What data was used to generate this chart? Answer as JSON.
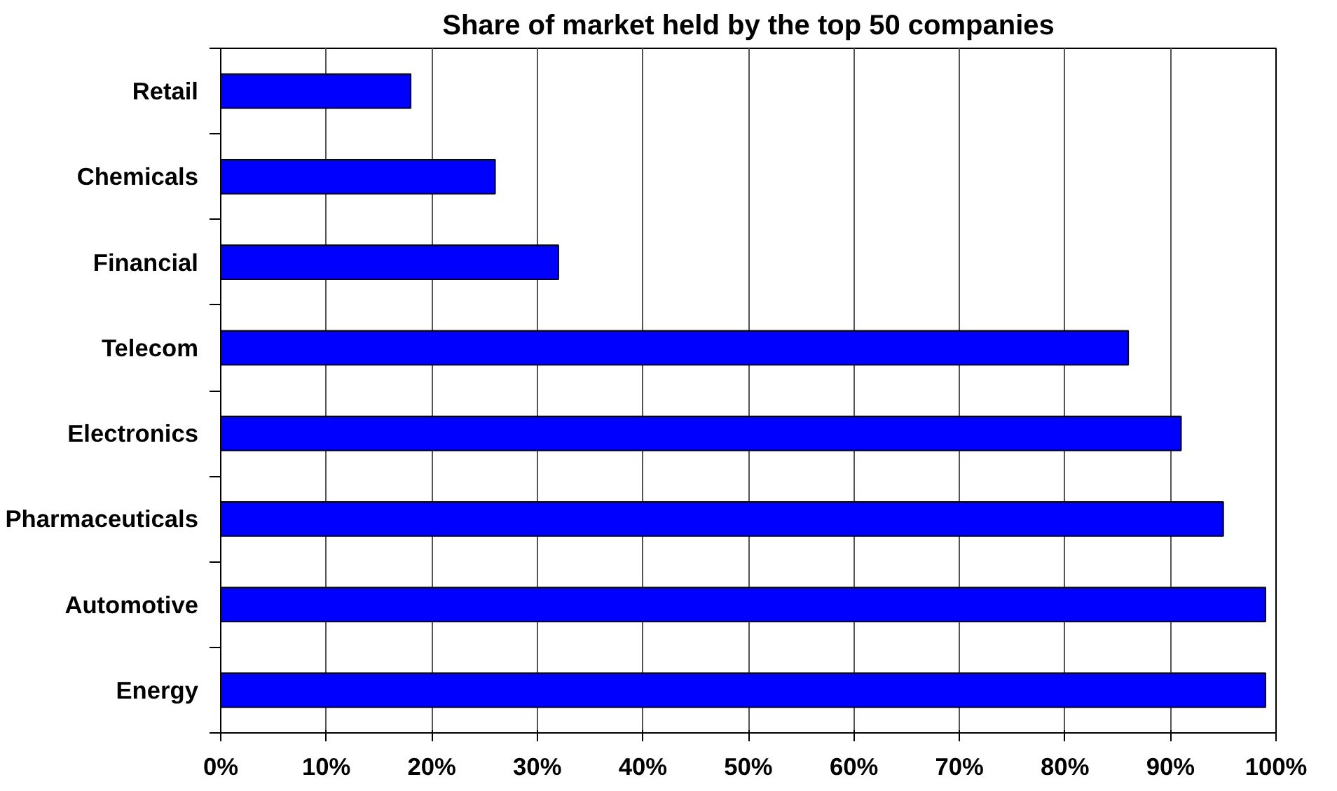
{
  "chart_data": {
    "type": "bar",
    "orientation": "horizontal",
    "title": "Share of market held by the top 50 companies",
    "categories": [
      "Retail",
      "Chemicals",
      "Financial",
      "Telecom",
      "Electronics",
      "Pharmaceuticals",
      "Automotive",
      "Energy"
    ],
    "values": [
      18,
      26,
      32,
      86,
      91,
      95,
      99,
      99
    ],
    "color": "#0000ff",
    "xlim": [
      0,
      100
    ],
    "xticks": [
      {
        "value": 0,
        "label": "0%"
      },
      {
        "value": 10,
        "label": "10%"
      },
      {
        "value": 20,
        "label": "20%"
      },
      {
        "value": 30,
        "label": "30%"
      },
      {
        "value": 40,
        "label": "40%"
      },
      {
        "value": 50,
        "label": "50%"
      },
      {
        "value": 60,
        "label": "60%"
      },
      {
        "value": 70,
        "label": "70%"
      },
      {
        "value": 80,
        "label": "80%"
      },
      {
        "value": 90,
        "label": "90%"
      },
      {
        "value": 100,
        "label": "100%"
      }
    ],
    "grid": "x"
  }
}
